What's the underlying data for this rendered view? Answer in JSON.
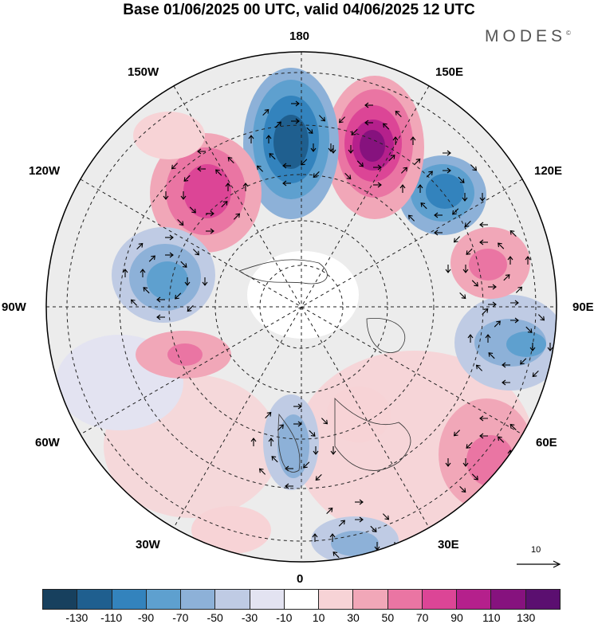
{
  "title": "Base 01/06/2025 00 UTC, valid 04/06/2025 12 UTC",
  "logo": "MODES",
  "logo_mark": "©",
  "longitude_labels": {
    "lon_180": "180",
    "lon_150w": "150W",
    "lon_150e": "150E",
    "lon_120w": "120W",
    "lon_120e": "120E",
    "lon_90w": "90W",
    "lon_90e": "90E",
    "lon_60w": "60W",
    "lon_60e": "60E",
    "lon_30w": "30W",
    "lon_30e": "30E",
    "lon_0": "0"
  },
  "reference_vector_label": "10",
  "colorbar": {
    "colors": [
      "#17405e",
      "#1f5f8f",
      "#3383bd",
      "#5ea0cf",
      "#8db1d8",
      "#bfcbe4",
      "#e3e3f1",
      "#ffffff",
      "#f7d3d6",
      "#f1a7b8",
      "#ea75a3",
      "#dc4596",
      "#b5208c",
      "#86127e",
      "#5b0f70"
    ],
    "tick_labels": [
      "-130",
      "-110",
      "-90",
      "-70",
      "-50",
      "-30",
      "-10",
      "10",
      "30",
      "50",
      "70",
      "90",
      "110",
      "130"
    ]
  },
  "map": {
    "projection": "north polar stereographic",
    "field": "anomaly with wind vectors",
    "anomalies": [
      {
        "center_lon": 168,
        "sign": "negative",
        "magnitude": 110
      },
      {
        "center_lon": -168,
        "sign": "positive",
        "magnitude": 130
      },
      {
        "center_lon": -140,
        "sign": "negative",
        "magnitude": 90
      },
      {
        "center_lon": 138,
        "sign": "positive",
        "magnitude": 90
      },
      {
        "center_lon": 112,
        "sign": "negative",
        "magnitude": 70
      },
      {
        "center_lon": -95,
        "sign": "positive",
        "magnitude": 50
      },
      {
        "center_lon": -82,
        "sign": "negative",
        "magnitude": 70
      },
      {
        "center_lon": 55,
        "sign": "positive",
        "magnitude": 70
      },
      {
        "center_lon": 10,
        "sign": "negative",
        "magnitude": 50
      },
      {
        "center_lon": -20,
        "sign": "positive",
        "magnitude": 30
      }
    ]
  }
}
